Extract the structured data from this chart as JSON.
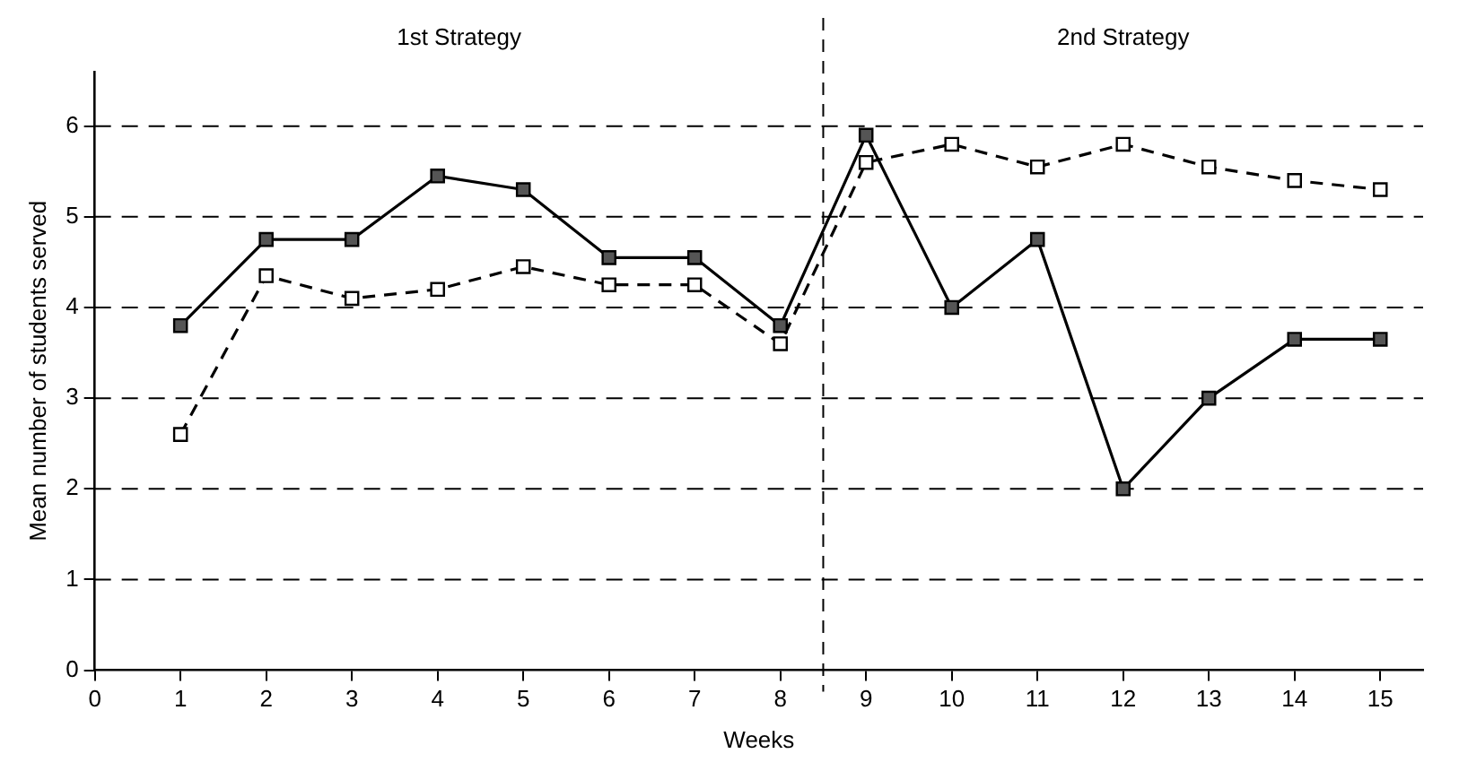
{
  "chart_data": {
    "type": "line",
    "xlabel": "Weeks",
    "ylabel": "Mean number of students served",
    "x": [
      1,
      2,
      3,
      4,
      5,
      6,
      7,
      8,
      9,
      10,
      11,
      12,
      13,
      14,
      15
    ],
    "series": [
      {
        "color": "#000000",
        "marker": "square",
        "line_style": "solid",
        "values": [
          3.8,
          4.75,
          4.75,
          5.45,
          5.3,
          4.55,
          4.55,
          3.8,
          5.9,
          4.0,
          4.75,
          2.0,
          3.0,
          3.65,
          3.65
        ]
      },
      {
        "color": "#000000",
        "marker": "square",
        "line_style": "dashed",
        "values": [
          2.6,
          4.35,
          4.1,
          4.2,
          4.45,
          4.25,
          4.25,
          3.6,
          5.6,
          5.8,
          5.55,
          5.8,
          5.55,
          5.4,
          5.3
        ]
      }
    ],
    "xlim": [
      0,
      15.5
    ],
    "xticks": [
      0,
      1,
      2,
      3,
      4,
      5,
      6,
      7,
      8,
      9,
      10,
      11,
      12,
      13,
      14,
      15
    ],
    "ylim": [
      0,
      6.6
    ],
    "yticks": [
      0,
      1,
      2,
      3,
      4,
      5,
      6
    ],
    "grid": "y",
    "legend": false,
    "ref_lines": [
      {
        "axis": "x",
        "value": 8.5,
        "line_style": "dashed"
      }
    ],
    "annotations": [
      "1st Strategy",
      "2nd Strategy"
    ]
  }
}
